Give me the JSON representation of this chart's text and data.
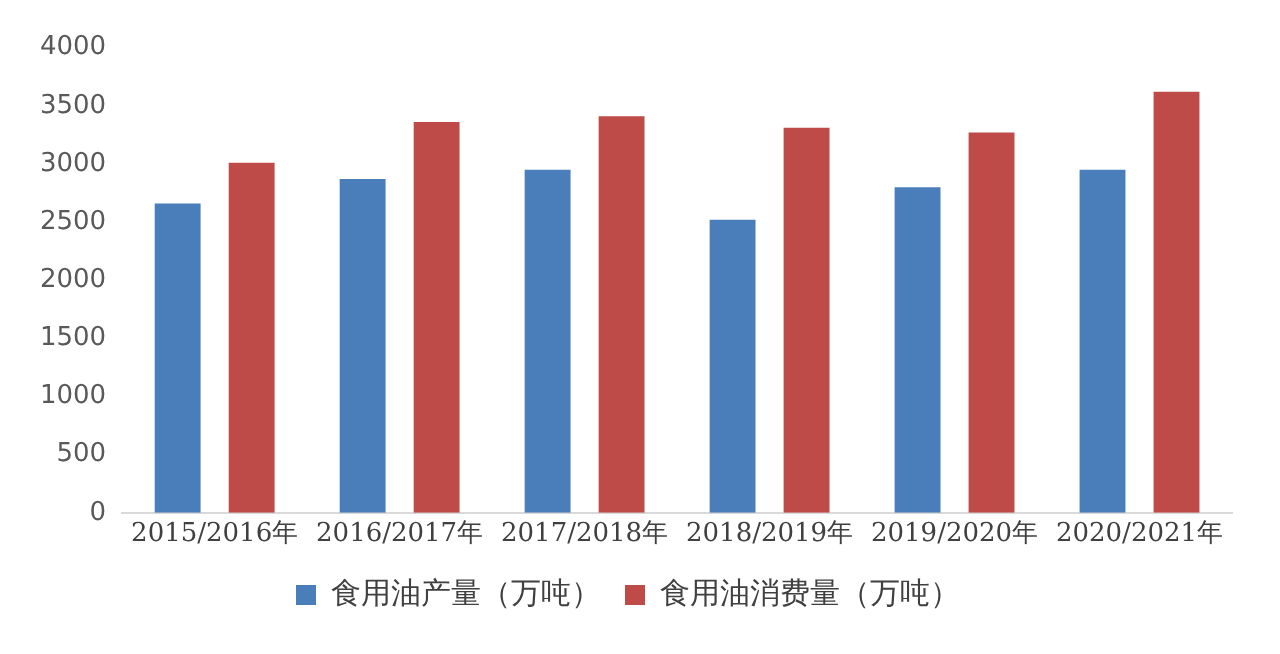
{
  "chart_data": {
    "type": "bar",
    "categories": [
      "2015/2016年",
      "2016/2017年",
      "2017/2018年",
      "2018/2019年",
      "2019/2020年",
      "2020/2021年"
    ],
    "series": [
      {
        "name": "食用油产量（万吨）",
        "color": "#4a7ebb",
        "values": [
          2660,
          2870,
          2950,
          2520,
          2800,
          2950
        ]
      },
      {
        "name": "食用油消费量（万吨）",
        "color": "#be4b48",
        "values": [
          3010,
          3360,
          3410,
          3310,
          3270,
          3620
        ]
      }
    ],
    "ylim": [
      0,
      4000
    ],
    "yticks": [
      0,
      500,
      1000,
      1500,
      2000,
      2500,
      3000,
      3500,
      4000
    ],
    "grid": false,
    "legend": "bottom"
  }
}
